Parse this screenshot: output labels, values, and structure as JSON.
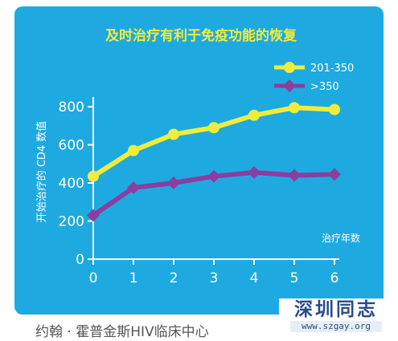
{
  "chart_data": {
    "type": "line",
    "title": "及时治疗有利于免疫功能的恢复",
    "xlabel": "治疗年数",
    "ylabel": "开始治疗的 CD4 数值",
    "x": [
      0,
      1,
      2,
      3,
      4,
      5,
      6
    ],
    "x_ticks": [
      "0",
      "1",
      "2",
      "3",
      "4",
      "5",
      "6"
    ],
    "y_ticks": [
      "0",
      "200",
      "400",
      "600",
      "800"
    ],
    "ylim": [
      0,
      850
    ],
    "xlim": [
      0,
      6
    ],
    "grid": false,
    "legend_position": "top-right",
    "series": [
      {
        "name": "201-350",
        "values": [
          435,
          570,
          655,
          690,
          755,
          795,
          785
        ],
        "color": "#f0ec3c",
        "marker": "circle"
      },
      {
        "name": ">350",
        "values": [
          230,
          375,
          400,
          435,
          455,
          440,
          445
        ],
        "color": "#8a3fa0",
        "marker": "diamond"
      }
    ]
  },
  "colors": {
    "panel_bg": "#1eaae1",
    "title_color": "#f0ec3c",
    "axis_color": "#ffffff"
  },
  "footer": {
    "source": "约翰 · 霍普金斯HIV临床中心"
  },
  "watermark": {
    "title": "深圳同志",
    "url": "www.szgay.org"
  }
}
